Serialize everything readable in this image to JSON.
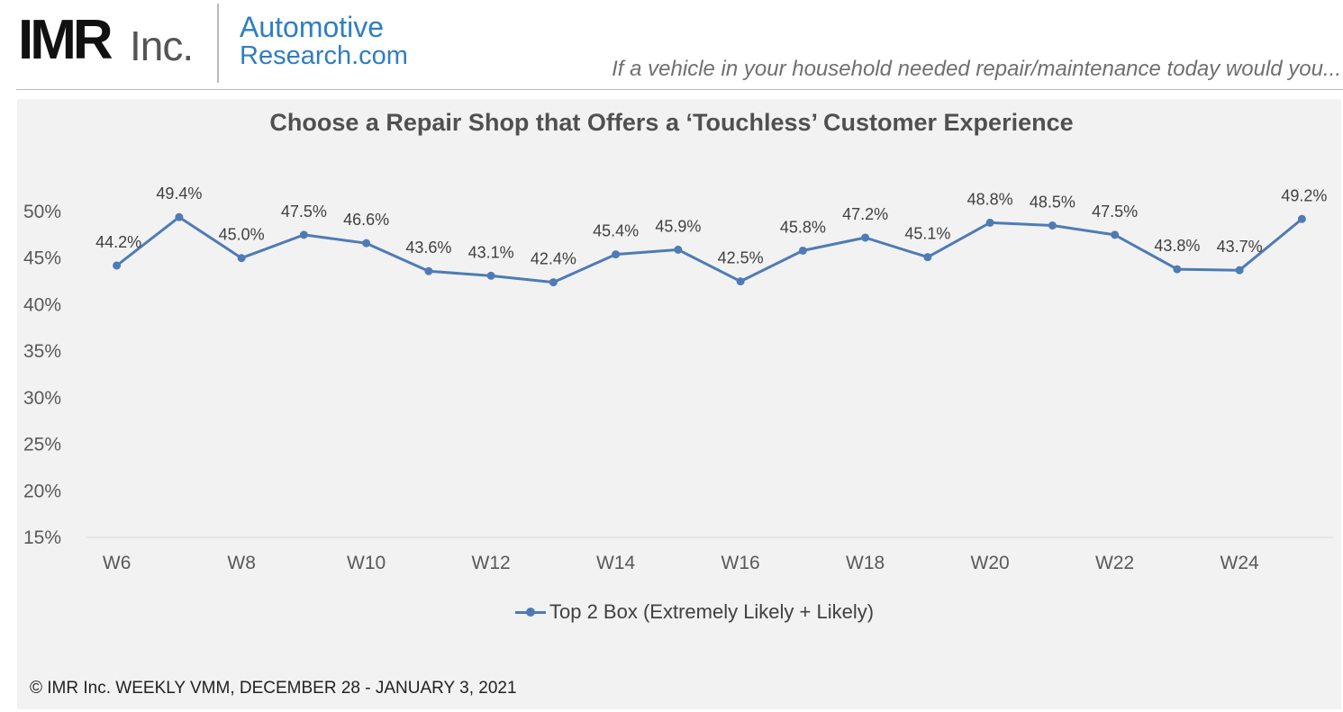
{
  "header": {
    "logo_imr": "IMR",
    "logo_inc": "Inc.",
    "logo_automotive": "Automotive",
    "logo_research": "Research.",
    "logo_dotcom": "com",
    "tagline": "If a vehicle in your household needed repair/maintenance today would you..."
  },
  "footer": {
    "copyright": "© IMR Inc. WEEKLY VMM, DECEMBER 28 - JANUARY 3, 2021"
  },
  "colors": {
    "series": "#4f7bb5",
    "panel": "#f2f2f2",
    "brand": "#2f7ec2"
  },
  "chart_data": {
    "type": "line",
    "title": "Choose a Repair Shop that Offers a ‘Touchless’ Customer Experience",
    "xlabel": "",
    "ylabel": "",
    "x": [
      "W6",
      "W7",
      "W8",
      "W9",
      "W10",
      "W11",
      "W12",
      "W13",
      "W14",
      "W15",
      "W16",
      "W17",
      "W18",
      "W19",
      "W20",
      "W21",
      "W22",
      "W23",
      "W24",
      "W25"
    ],
    "x_tick_labels": [
      "W6",
      "W8",
      "W10",
      "W12",
      "W14",
      "W16",
      "W18",
      "W20",
      "W22",
      "W24"
    ],
    "ylim": [
      15,
      50
    ],
    "y_ticks": [
      15,
      20,
      25,
      30,
      35,
      40,
      45,
      50
    ],
    "y_tick_labels": [
      "15%",
      "20%",
      "25%",
      "30%",
      "35%",
      "40%",
      "45%",
      "50%"
    ],
    "grid": false,
    "legend_position": "bottom",
    "series": [
      {
        "name": "Top 2 Box (Extremely Likely + Likely)",
        "values": [
          44.2,
          49.4,
          45.0,
          47.5,
          46.6,
          43.6,
          43.1,
          42.4,
          45.4,
          45.9,
          42.5,
          45.8,
          47.2,
          45.1,
          48.8,
          48.5,
          47.5,
          43.8,
          43.7,
          49.2
        ],
        "data_labels": [
          "44.2%",
          "49.4%",
          "45.0%",
          "47.5%",
          "46.6%",
          "43.6%",
          "43.1%",
          "42.4%",
          "45.4%",
          "45.9%",
          "42.5%",
          "45.8%",
          "47.2%",
          "45.1%",
          "48.8%",
          "48.5%",
          "47.5%",
          "43.8%",
          "43.7%",
          "49.2%"
        ]
      }
    ]
  }
}
